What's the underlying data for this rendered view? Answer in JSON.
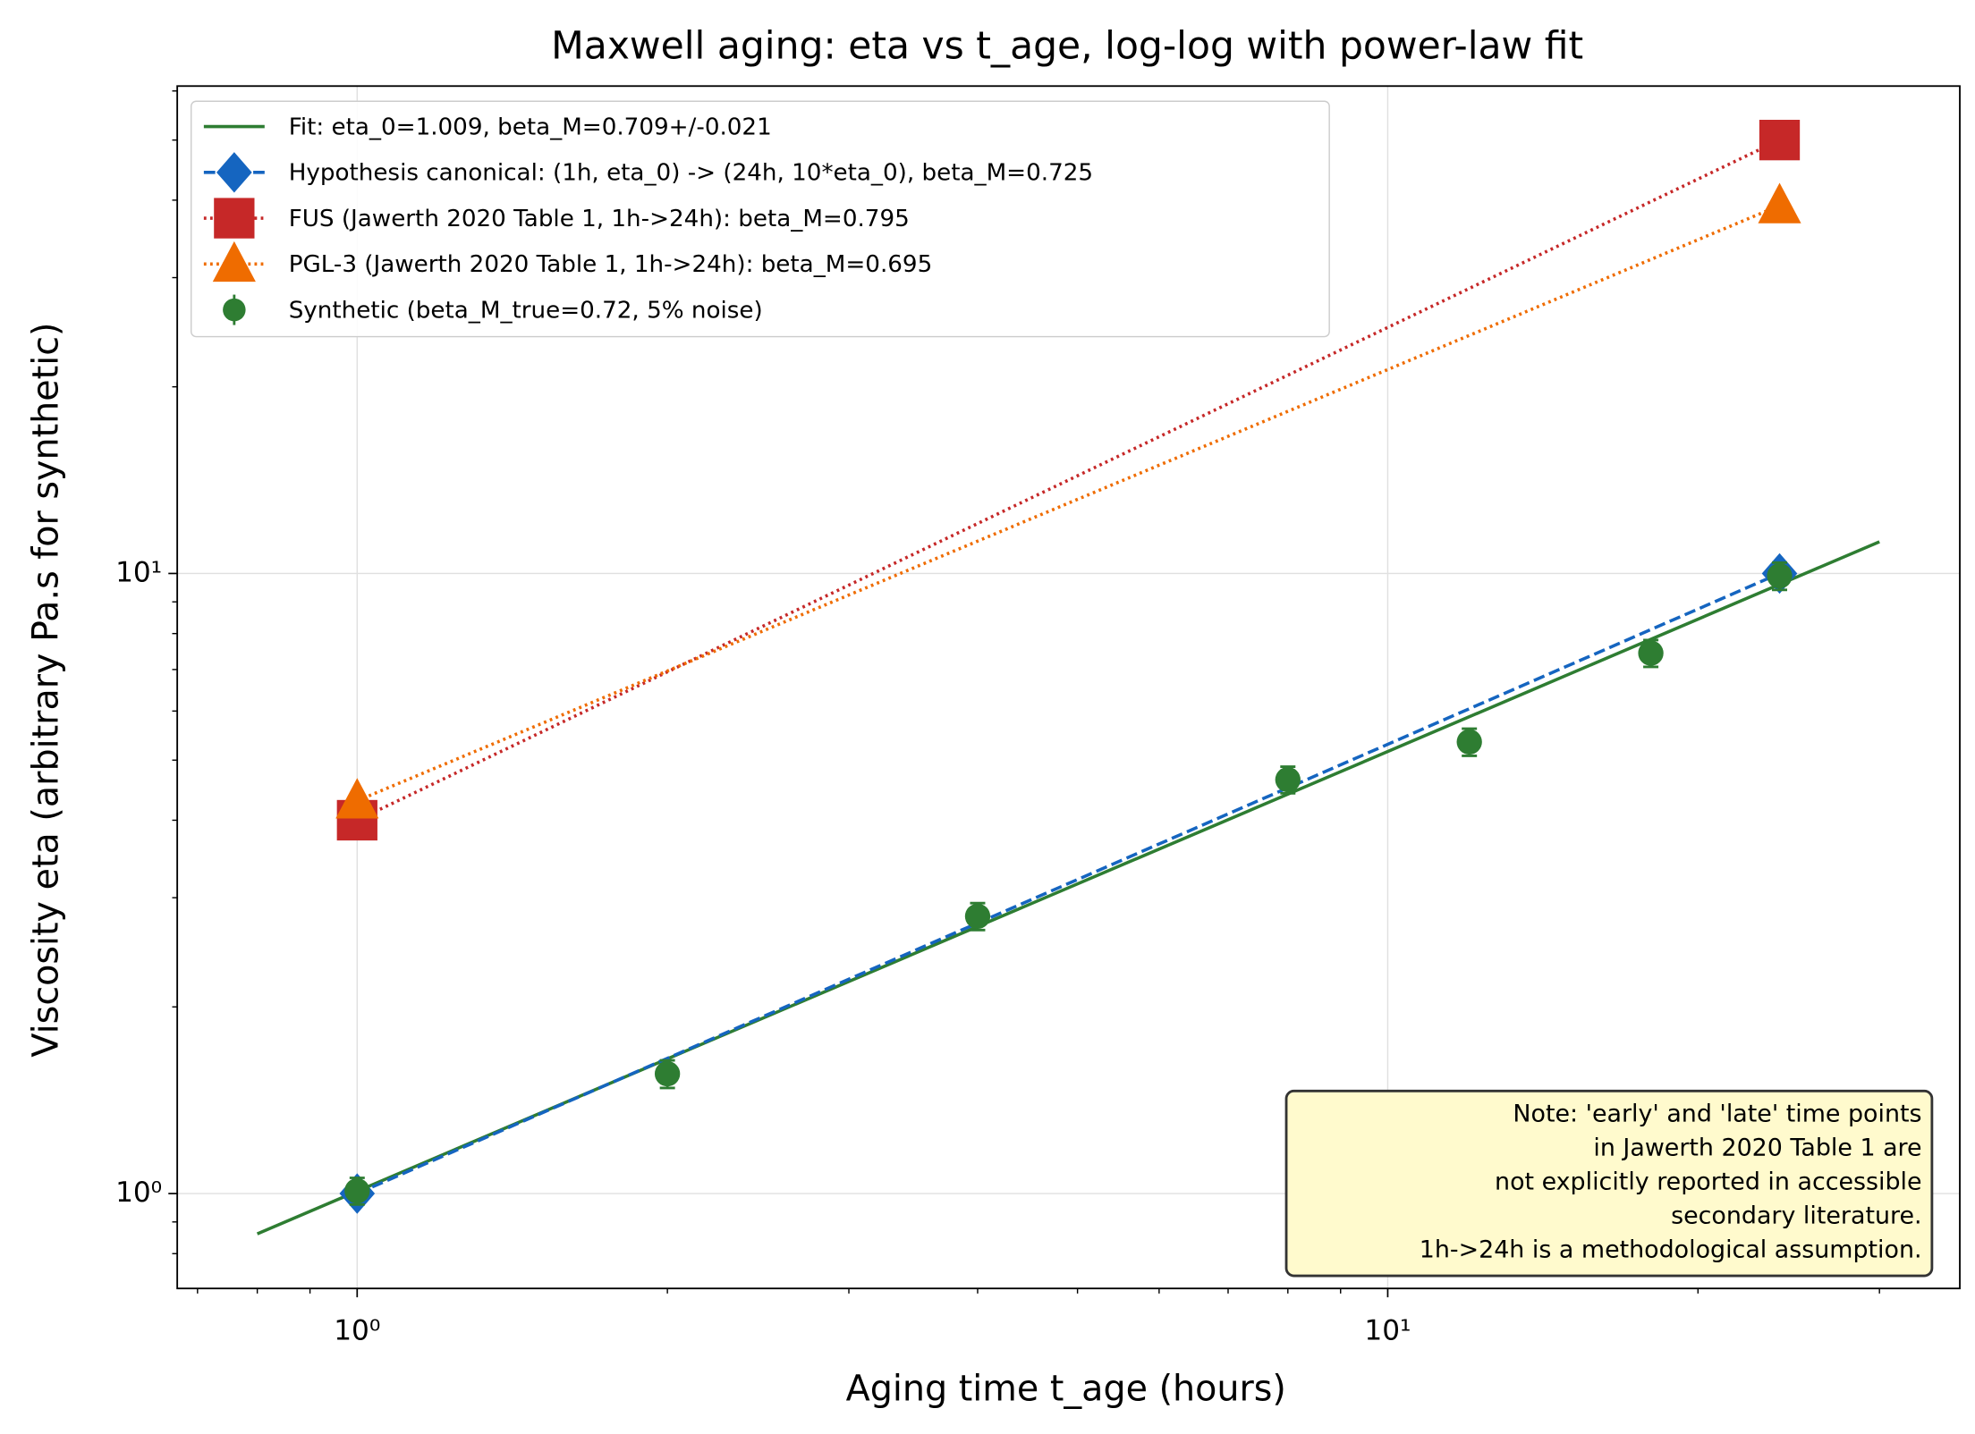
{
  "chart_data": {
    "type": "line",
    "title": "Maxwell aging: eta vs t_age, log-log with power-law fit",
    "xlabel": "Aging time t_age (hours)",
    "ylabel": "Viscosity eta (arbitrary Pa.s for synthetic)",
    "xscale": "log",
    "yscale": "log",
    "xlim": [
      0.669,
      35.9
    ],
    "ylim": [
      0.703,
      61.1
    ],
    "xticks": [
      {
        "value": 1,
        "label": "10⁰"
      },
      {
        "value": 10,
        "label": "10¹"
      }
    ],
    "yticks": [
      {
        "value": 1,
        "label": "10⁰"
      },
      {
        "value": 10,
        "label": "10¹"
      }
    ],
    "xminorticks": [
      0.7,
      0.8,
      0.9,
      2,
      3,
      4,
      5,
      6,
      7,
      8,
      9,
      20,
      30
    ],
    "yminorticks": [
      0.8,
      0.9,
      2,
      3,
      4,
      5,
      6,
      7,
      8,
      9,
      20,
      30,
      40,
      50,
      60
    ],
    "grid": true,
    "legend": "upper left",
    "series": [
      {
        "name": "Fit: eta_0=1.009, beta_M=0.709+/-0.021",
        "color": "#2e7d32",
        "linestyle": "solid",
        "marker": "none",
        "x": [
          0.8,
          30
        ],
        "y": [
          0.861,
          11.25
        ]
      },
      {
        "name": "Hypothesis canonical: (1h, eta_0) -> (24h, 10*eta_0), beta_M=0.725",
        "color": "#1565c0",
        "linestyle": "dashed",
        "marker": "diamond",
        "x": [
          1,
          24
        ],
        "y": [
          1,
          10
        ]
      },
      {
        "name": "FUS (Jawerth 2020 Table 1, 1h->24h): beta_M=0.795",
        "color": "#c62828",
        "linestyle": "dotted",
        "marker": "square",
        "x": [
          1,
          24
        ],
        "y": [
          4.0,
          50
        ]
      },
      {
        "name": "PGL-3 (Jawerth 2020 Table 1, 1h->24h): beta_M=0.695",
        "color": "#ef6c00",
        "linestyle": "dotted",
        "marker": "triangle",
        "x": [
          1,
          24
        ],
        "y": [
          4.3,
          39.2
        ]
      },
      {
        "name": "Synthetic (beta_M_true=0.72, 5% noise)",
        "color": "#2e7d32",
        "linestyle": "none",
        "marker": "circle",
        "x": [
          1,
          2,
          4,
          8,
          12,
          18,
          24
        ],
        "y": [
          1.01,
          1.56,
          2.8,
          4.65,
          5.35,
          7.44,
          9.91
        ],
        "yerr": [
          0.05,
          0.08,
          0.14,
          0.23,
          0.27,
          0.37,
          0.5
        ]
      }
    ],
    "annotation": {
      "lines": [
        "Note: 'early' and 'late' time points",
        "in Jawerth 2020 Table 1 are",
        "not explicitly reported in accessible",
        "secondary literature.",
        "1h->24h is a methodological assumption."
      ]
    }
  }
}
